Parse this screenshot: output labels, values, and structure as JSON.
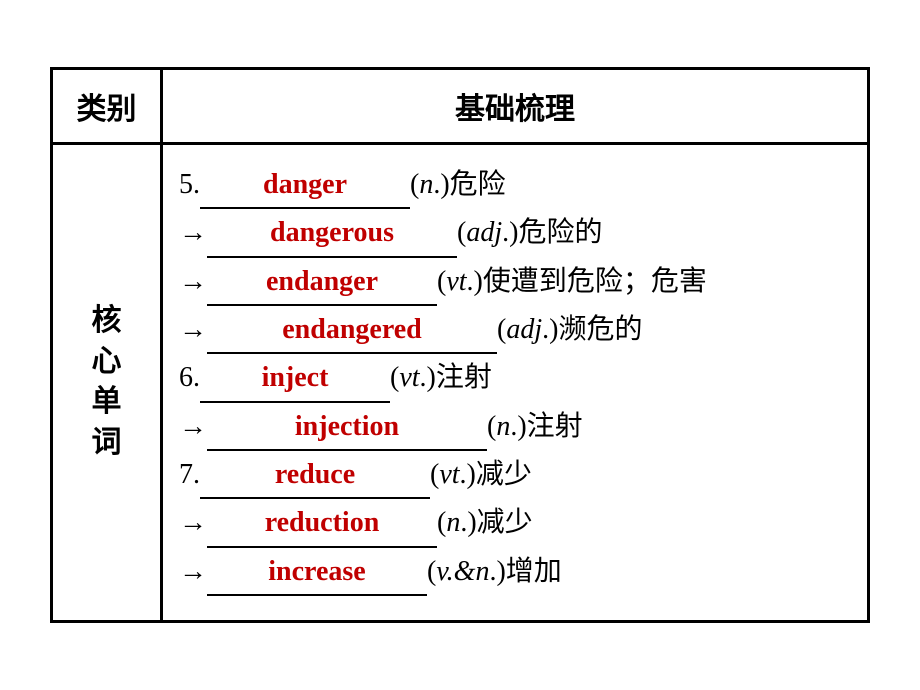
{
  "header": {
    "category_label": "类别",
    "main_label": "基础梳理"
  },
  "side_label": {
    "l1": "核",
    "l2": "心",
    "l3": "单",
    "l4": "词"
  },
  "answer_color": "#c00000",
  "blank_border_color": "#000000",
  "table_border_color": "#000000",
  "font_size_header": 30,
  "font_size_body": 28,
  "rows": {
    "r0": {
      "lead": "5.",
      "answer": "danger",
      "blank_width": 210,
      "after_pos_open": "(",
      "pos": "n",
      "after_pos_close": ".)",
      "meaning": "危险"
    },
    "r1": {
      "lead": "→",
      "answer": "dangerous",
      "blank_width": 250,
      "after_pos_open": "(",
      "pos": "adj",
      "after_pos_close": ".)",
      "meaning": "危险的"
    },
    "r2": {
      "lead": "→",
      "answer": "endanger",
      "blank_width": 230,
      "after_pos_open": "(",
      "pos": "vt",
      "after_pos_close": ".)",
      "meaning": "使遭到危险；危害"
    },
    "r3": {
      "lead": "→",
      "answer": "endangered",
      "blank_width": 290,
      "after_pos_open": "(",
      "pos": "adj",
      "after_pos_close": ".)",
      "meaning": "濒危的"
    },
    "r4": {
      "lead": "6.",
      "answer": "inject",
      "blank_width": 190,
      "after_pos_open": "(",
      "pos": "vt",
      "after_pos_close": ".)",
      "meaning": "注射"
    },
    "r5": {
      "lead": "→",
      "answer": "injection",
      "blank_width": 280,
      "after_pos_open": "(",
      "pos": "n",
      "after_pos_close": ".)",
      "meaning": "注射"
    },
    "r6": {
      "lead": "7.",
      "answer": "reduce",
      "blank_width": 230,
      "after_pos_open": "(",
      "pos": "vt",
      "after_pos_close": ".)",
      "meaning": "减少"
    },
    "r7": {
      "lead": "→",
      "answer": "reduction",
      "blank_width": 230,
      "after_pos_open": "(",
      "pos": "n",
      "after_pos_close": ".)",
      "meaning": "减少"
    },
    "r8": {
      "lead": "→",
      "answer": "increase",
      "blank_width": 220,
      "after_pos_open": "(",
      "pos": "v.&n",
      "after_pos_close": ".)",
      "meaning": "增加"
    }
  }
}
